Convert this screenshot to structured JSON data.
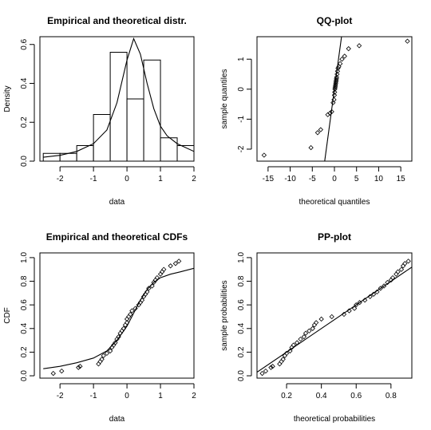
{
  "chart_data": [
    {
      "type": "bar",
      "title": "Empirical and theoretical distr.",
      "xlabel": "data",
      "ylabel": "Density",
      "xlim": [
        -2.6,
        2.0
      ],
      "ylim": [
        0,
        0.64
      ],
      "xticks": [
        -2,
        -1,
        0,
        1,
        2
      ],
      "yticks": [
        0.0,
        0.2,
        0.4,
        0.6
      ],
      "histogram": {
        "breaks": [
          -2.5,
          -2.0,
          -1.5,
          -1.0,
          -0.5,
          0.0,
          0.5,
          1.0,
          1.5,
          2.0
        ],
        "density": [
          0.04,
          0.04,
          0.08,
          0.24,
          0.56,
          0.32,
          0.52,
          0.12,
          0.08
        ]
      },
      "theoretical_density": {
        "x": [
          -2.5,
          -2.0,
          -1.5,
          -1.0,
          -0.6,
          -0.3,
          0.0,
          0.2,
          0.4,
          0.6,
          0.8,
          1.0,
          1.2,
          1.5,
          2.0
        ],
        "y": [
          0.02,
          0.03,
          0.05,
          0.09,
          0.16,
          0.3,
          0.52,
          0.63,
          0.55,
          0.4,
          0.27,
          0.18,
          0.13,
          0.09,
          0.05
        ]
      }
    },
    {
      "type": "scatter",
      "title": "QQ-plot",
      "xlabel": "theoretical quantiles",
      "ylabel": "sample quantiles",
      "xlim": [
        -17.5,
        17.5
      ],
      "ylim": [
        -2.4,
        1.75
      ],
      "xticks": [
        -15,
        -10,
        -5,
        0,
        5,
        10,
        15
      ],
      "yticks": [
        -2,
        -1,
        0,
        1
      ],
      "points": {
        "x": [
          -15.9,
          -5.3,
          -3.8,
          -3.1,
          -1.5,
          -1.0,
          -0.6,
          -0.3,
          -0.1,
          0.0,
          0.05,
          0.1,
          0.15,
          0.2,
          0.25,
          0.3,
          0.35,
          0.4,
          0.45,
          0.5,
          0.6,
          0.7,
          0.8,
          1.0,
          1.3,
          1.7,
          2.3,
          3.2,
          5.6,
          16.5
        ],
        "y": [
          -2.2,
          -1.95,
          -1.45,
          -1.35,
          -0.85,
          -0.8,
          -0.75,
          -0.45,
          -0.35,
          -0.2,
          -0.1,
          0.0,
          0.05,
          0.1,
          0.15,
          0.2,
          0.25,
          0.3,
          0.35,
          0.4,
          0.5,
          0.6,
          0.7,
          0.75,
          0.85,
          1.0,
          1.1,
          1.35,
          1.45,
          1.6
        ]
      },
      "reference_line": {
        "x": [
          -2.2,
          1.6
        ],
        "y": [
          -2.4,
          1.75
        ]
      }
    },
    {
      "type": "line",
      "title": "Empirical and theoretical CDFs",
      "xlabel": "data",
      "ylabel": "CDF",
      "xlim": [
        -2.6,
        2.0
      ],
      "ylim": [
        -0.02,
        1.04
      ],
      "xticks": [
        -2,
        -1,
        0,
        1,
        2
      ],
      "yticks": [
        0.0,
        0.2,
        0.4,
        0.6,
        0.8,
        1.0
      ],
      "empirical_points": {
        "x": [
          -2.2,
          -1.95,
          -1.45,
          -1.4,
          -0.85,
          -0.8,
          -0.75,
          -0.7,
          -0.6,
          -0.5,
          -0.45,
          -0.4,
          -0.35,
          -0.3,
          -0.25,
          -0.2,
          -0.15,
          -0.1,
          -0.05,
          0.0,
          0.0,
          0.05,
          0.1,
          0.15,
          0.25,
          0.35,
          0.4,
          0.45,
          0.5,
          0.55,
          0.6,
          0.65,
          0.75,
          0.8,
          0.85,
          0.9,
          1.0,
          1.05,
          1.1,
          1.3,
          1.45,
          1.55
        ],
        "y": [
          0.02,
          0.04,
          0.07,
          0.08,
          0.1,
          0.12,
          0.14,
          0.17,
          0.19,
          0.21,
          0.24,
          0.26,
          0.28,
          0.31,
          0.33,
          0.36,
          0.38,
          0.4,
          0.43,
          0.45,
          0.48,
          0.5,
          0.52,
          0.55,
          0.57,
          0.6,
          0.62,
          0.64,
          0.67,
          0.69,
          0.71,
          0.74,
          0.76,
          0.79,
          0.81,
          0.83,
          0.86,
          0.88,
          0.9,
          0.93,
          0.95,
          0.97
        ]
      },
      "theoretical_cdf": {
        "x": [
          -2.5,
          -2.0,
          -1.5,
          -1.0,
          -0.6,
          -0.3,
          0.0,
          0.2,
          0.4,
          0.6,
          0.8,
          1.0,
          1.3,
          1.6,
          2.0
        ],
        "y": [
          0.06,
          0.08,
          0.11,
          0.15,
          0.21,
          0.3,
          0.42,
          0.53,
          0.64,
          0.73,
          0.79,
          0.83,
          0.86,
          0.88,
          0.91
        ]
      }
    },
    {
      "type": "scatter",
      "title": "PP-plot",
      "xlabel": "theoretical probabilities",
      "ylabel": "sample probabilities",
      "xlim": [
        0.03,
        0.92
      ],
      "ylim": [
        -0.02,
        1.04
      ],
      "xticks": [
        0.2,
        0.4,
        0.6,
        0.8
      ],
      "yticks": [
        0.0,
        0.2,
        0.4,
        0.6,
        0.8,
        1.0
      ],
      "points": {
        "x": [
          0.06,
          0.08,
          0.11,
          0.12,
          0.16,
          0.17,
          0.18,
          0.19,
          0.2,
          0.22,
          0.23,
          0.24,
          0.26,
          0.28,
          0.3,
          0.31,
          0.33,
          0.35,
          0.36,
          0.37,
          0.4,
          0.46,
          0.53,
          0.56,
          0.59,
          0.6,
          0.62,
          0.65,
          0.68,
          0.7,
          0.72,
          0.74,
          0.76,
          0.78,
          0.8,
          0.81,
          0.83,
          0.84,
          0.86,
          0.87,
          0.88,
          0.9
        ],
        "y": [
          0.02,
          0.04,
          0.07,
          0.08,
          0.1,
          0.12,
          0.14,
          0.17,
          0.19,
          0.21,
          0.24,
          0.26,
          0.28,
          0.31,
          0.33,
          0.36,
          0.38,
          0.4,
          0.43,
          0.45,
          0.48,
          0.5,
          0.52,
          0.55,
          0.57,
          0.6,
          0.62,
          0.64,
          0.67,
          0.69,
          0.71,
          0.74,
          0.76,
          0.79,
          0.81,
          0.83,
          0.86,
          0.88,
          0.9,
          0.93,
          0.95,
          0.97
        ]
      },
      "reference_line": {
        "x": [
          0.03,
          0.92
        ],
        "y": [
          0.03,
          0.92
        ]
      }
    }
  ]
}
